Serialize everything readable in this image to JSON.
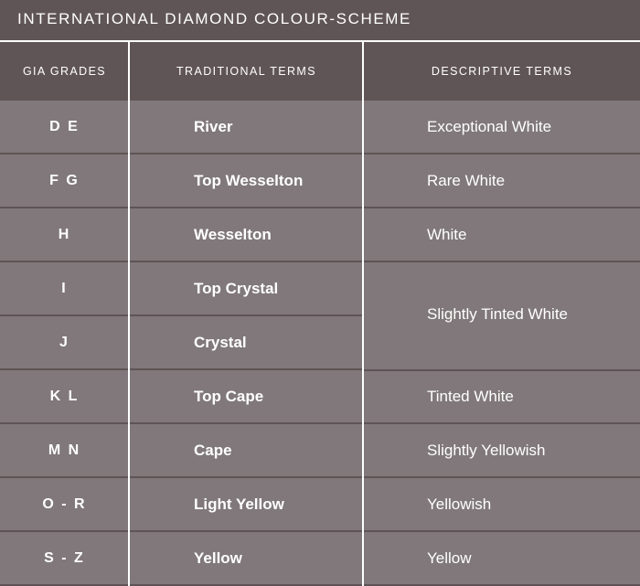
{
  "title": "INTERNATIONAL DIAMOND COLOUR-SCHEME",
  "headers": [
    "GIA GRADES",
    "TRADITIONAL TERMS",
    "DESCRIPTIVE TERMS"
  ],
  "rows": [
    {
      "grade": "D E",
      "traditional": "River",
      "descriptive": "Exceptional White"
    },
    {
      "grade": "F G",
      "traditional": "Top Wesselton",
      "descriptive": "Rare White"
    },
    {
      "grade": "H",
      "traditional": "Wesselton",
      "descriptive": "White"
    },
    {
      "grade": "I",
      "traditional": "Top Crystal",
      "descriptive": ""
    },
    {
      "grade": "J",
      "traditional": "Crystal",
      "descriptive": ""
    },
    {
      "grade": "K L",
      "traditional": "Top Cape",
      "descriptive": "Tinted White"
    },
    {
      "grade": "M N",
      "traditional": "Cape",
      "descriptive": "Slightly Yellowish"
    },
    {
      "grade": "O - R",
      "traditional": "Light Yellow",
      "descriptive": "Yellowish"
    },
    {
      "grade": "S - Z",
      "traditional": "Yellow",
      "descriptive": "Yellow"
    }
  ],
  "merged_descriptive": "Slightly Tinted White",
  "colors": {
    "header": "#605556",
    "row": "#80787a",
    "divider": "#5e5456",
    "text": "#ffffff"
  }
}
